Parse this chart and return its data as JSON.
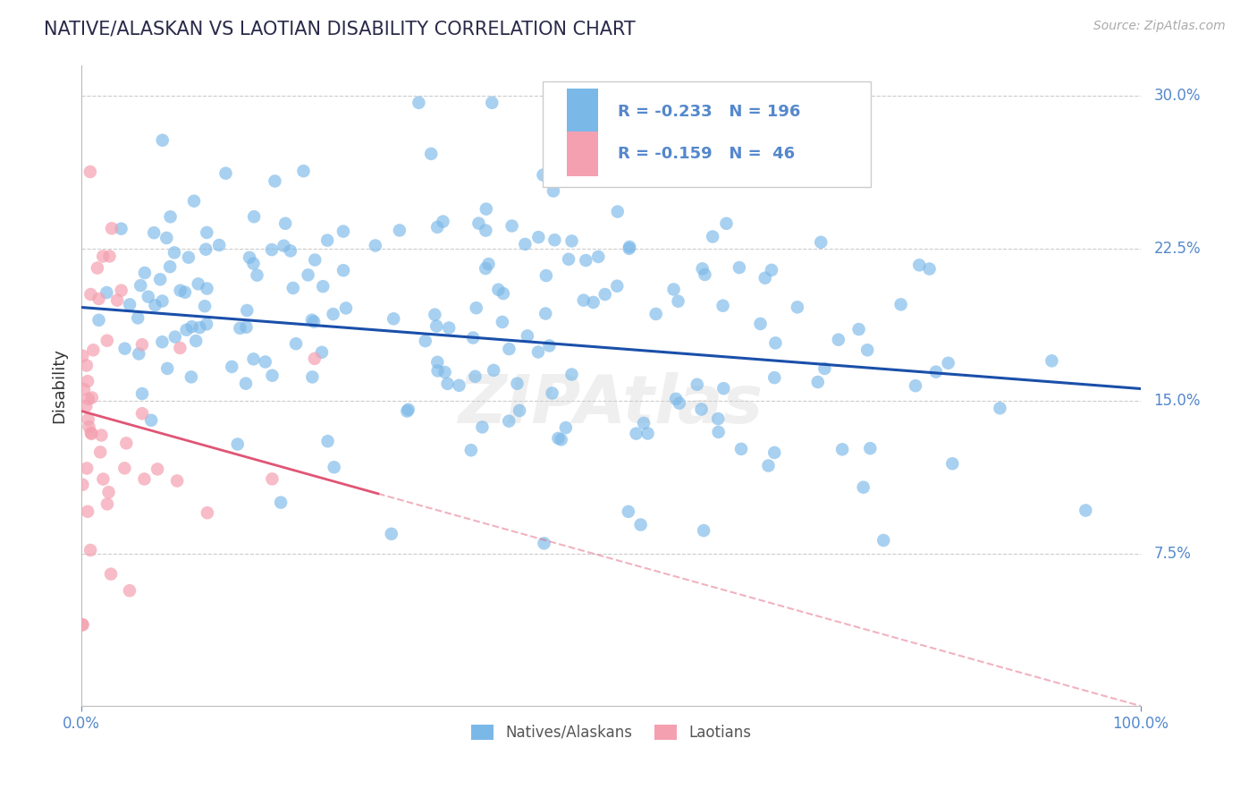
{
  "title": "NATIVE/ALASKAN VS LAOTIAN DISABILITY CORRELATION CHART",
  "source": "Source: ZipAtlas.com",
  "ylabel": "Disability",
  "xlim": [
    0.0,
    1.0
  ],
  "ylim": [
    0.0,
    0.315
  ],
  "yticks": [
    0.075,
    0.15,
    0.225,
    0.3
  ],
  "ytick_labels": [
    "7.5%",
    "15.0%",
    "22.5%",
    "30.0%"
  ],
  "blue_R": -0.233,
  "blue_N": 196,
  "pink_R": -0.159,
  "pink_N": 46,
  "blue_color": "#7ab8e8",
  "pink_color": "#f4a0b0",
  "blue_line_color": "#1a4faa",
  "pink_line_color": "#e05575",
  "grid_color": "#cccccc",
  "title_color": "#2a2a4a",
  "axis_label_color": "#333333",
  "tick_color": "#5588cc",
  "watermark": "ZIPAtlas",
  "legend_label_blue": "Natives/Alaskans",
  "legend_label_pink": "Laotians"
}
